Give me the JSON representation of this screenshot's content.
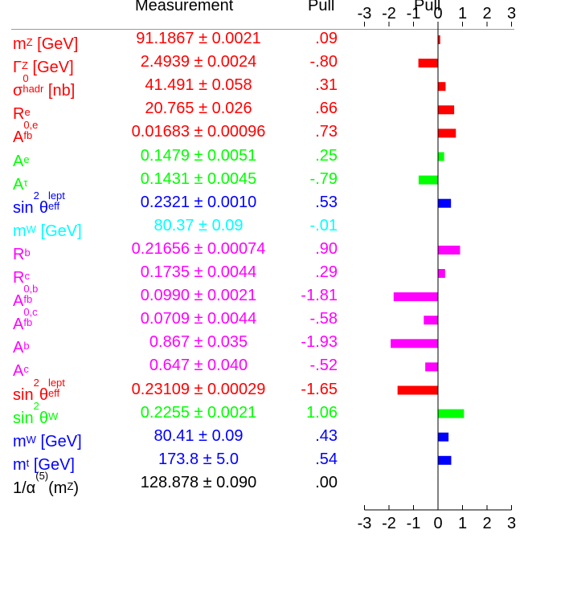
{
  "headers": {
    "measurement": "Measurement",
    "pull": "Pull",
    "pull_axis": "Pull"
  },
  "chart_data": {
    "type": "bar",
    "orientation": "horizontal",
    "xlim": [
      -3,
      3
    ],
    "ticks": [
      "-3",
      "-2",
      "-1",
      "0",
      "1",
      "2",
      "3"
    ],
    "rows": [
      {
        "sym": "m",
        "sub": "Z",
        "unit": " [GeV]",
        "value": "91.1867 ± 0.0021",
        "pull_text": ".09",
        "pull": 0.09,
        "color": "#ff0000"
      },
      {
        "sym": "Γ",
        "sub": "Z",
        "unit": " [GeV]",
        "value": "2.4939 ± 0.0024",
        "pull_text": "-.80",
        "pull": -0.8,
        "color": "#ff0000"
      },
      {
        "sym": "σ",
        "sup": "0",
        "sub": "hadr",
        "unit": " [nb]",
        "value": "41.491 ± 0.058",
        "pull_text": ".31",
        "pull": 0.31,
        "color": "#ff0000"
      },
      {
        "sym": "R",
        "sub": "e",
        "value": "20.765 ± 0.026",
        "pull_text": ".66",
        "pull": 0.66,
        "color": "#ff0000"
      },
      {
        "sym": "A",
        "sup": "0,e",
        "sub": "fb",
        "value": "0.01683 ± 0.00096",
        "pull_text": ".73",
        "pull": 0.73,
        "color": "#ff0000"
      },
      {
        "sym": "A",
        "sub": "e",
        "value": "0.1479 ± 0.0051",
        "pull_text": ".25",
        "pull": 0.25,
        "color": "#00ff00"
      },
      {
        "sym": "A",
        "sub": "τ",
        "value": "0.1431 ± 0.0045",
        "pull_text": "-.79",
        "pull": -0.79,
        "color": "#00ff00"
      },
      {
        "sym": "sin",
        "sup": "2",
        "sym2": "θ",
        "sup2": "lept",
        "sub2": "eff",
        "value": "0.2321 ± 0.0010",
        "pull_text": ".53",
        "pull": 0.53,
        "color": "#0000ff"
      },
      {
        "sym": "m",
        "sub": "W",
        "unit": " [GeV]",
        "value": "80.37 ± 0.09",
        "pull_text": "-.01",
        "pull": -0.01,
        "color": "#00ffff"
      },
      {
        "sym": "R",
        "sub": "b",
        "value": "0.21656 ± 0.00074",
        "pull_text": ".90",
        "pull": 0.9,
        "color": "#ff00ff"
      },
      {
        "sym": "R",
        "sub": "c",
        "value": "0.1735 ± 0.0044",
        "pull_text": ".29",
        "pull": 0.29,
        "color": "#ff00ff"
      },
      {
        "sym": "A",
        "sup": "0,b",
        "sub": "fb",
        "value": "0.0990 ± 0.0021",
        "pull_text": "-1.81",
        "pull": -1.81,
        "color": "#ff00ff"
      },
      {
        "sym": "A",
        "sup": "0,c",
        "sub": "fb",
        "value": "0.0709 ± 0.0044",
        "pull_text": "-.58",
        "pull": -0.58,
        "color": "#ff00ff"
      },
      {
        "sym": "A",
        "sub": "b",
        "value": "0.867 ± 0.035",
        "pull_text": "-1.93",
        "pull": -1.93,
        "color": "#ff00ff"
      },
      {
        "sym": "A",
        "sub": "c",
        "value": "0.647 ± 0.040",
        "pull_text": "-.52",
        "pull": -0.52,
        "color": "#ff00ff"
      },
      {
        "sym": "sin",
        "sup": "2",
        "sym2": "θ",
        "sup2": "lept",
        "sub2": "eff",
        "value": "0.23109 ± 0.00029",
        "pull_text": "-1.65",
        "pull": -1.65,
        "color": "#ff0000"
      },
      {
        "sym": "sin",
        "sup": "2",
        "sym2": "θ",
        "sub2": "W",
        "value": "0.2255 ± 0.0021",
        "pull_text": "1.06",
        "pull": 1.06,
        "color": "#00ff00"
      },
      {
        "sym": "m",
        "sub": "W",
        "unit": " [GeV]",
        "value": "80.41 ± 0.09",
        "pull_text": ".43",
        "pull": 0.43,
        "color": "#0000ff"
      },
      {
        "sym": "m",
        "sub": "t",
        "unit": " [GeV]",
        "value": "173.8 ± 5.0",
        "pull_text": ".54",
        "pull": 0.54,
        "color": "#0000ff"
      },
      {
        "sym": "1/α",
        "sup": "(5)",
        "tail": "(m",
        "tail_sub": "Z",
        "tail_end": ")",
        "value": "128.878 ± 0.090",
        "pull_text": ".00",
        "pull": 0.0,
        "color": "#000000"
      }
    ]
  }
}
